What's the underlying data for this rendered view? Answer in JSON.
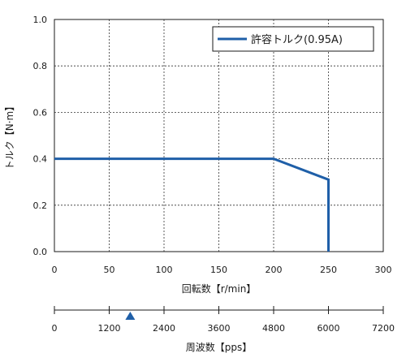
{
  "chart_data": {
    "type": "line",
    "title": "",
    "xlabel": "回転数【r/min】",
    "ylabel": "トルク【N·m】",
    "xlim": [
      0,
      300
    ],
    "ylim": [
      0,
      1.0
    ],
    "x_ticks": [
      "0",
      "50",
      "100",
      "150",
      "200",
      "250",
      "300"
    ],
    "y_ticks": [
      "0.0",
      "0.2",
      "0.4",
      "0.6",
      "0.8",
      "1.0"
    ],
    "grid": "dotted",
    "legend_position": "top-right",
    "series": [
      {
        "name": "許容トルク(0.95A)",
        "color": "#1f5fa8",
        "points": [
          [
            0,
            0.4
          ],
          [
            200,
            0.4
          ],
          [
            250,
            0.31
          ],
          [
            250,
            0.0
          ]
        ]
      }
    ],
    "secondary_axis": {
      "xlabel": "周波数【pps】",
      "xlim": [
        0,
        7200
      ],
      "ticks": [
        "0",
        "1200",
        "2400",
        "3600",
        "4800",
        "6000",
        "7200"
      ],
      "marker_value": 1660,
      "marker_color": "#1f5fa8"
    }
  }
}
